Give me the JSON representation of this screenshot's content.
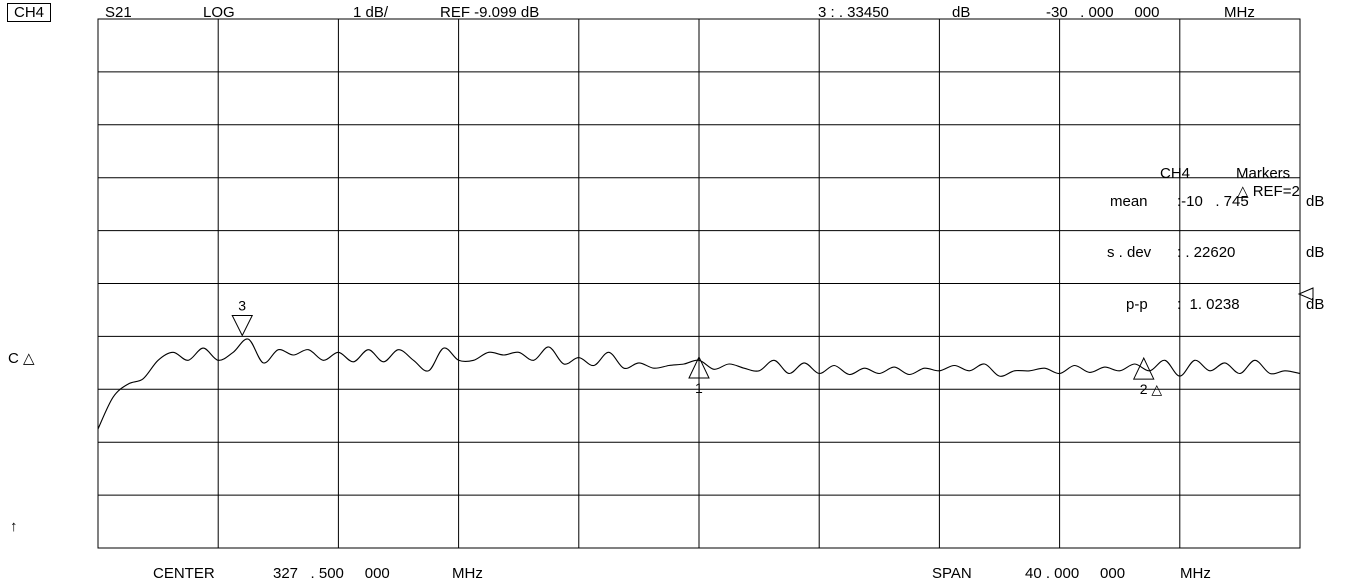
{
  "header": {
    "channel": "CH4",
    "param": "S21",
    "format": "LOG",
    "scale": "1 dB/",
    "ref": "REF -9.099 dB",
    "marker_readout": "3 : . 33450",
    "marker_unit": "dB",
    "marker_freq": "-30   . 000     000",
    "marker_freq_unit": "MHz"
  },
  "left_labels": {
    "ref_pos": "C △",
    "arrow": "↑"
  },
  "stats": {
    "title_ch": "CH4",
    "title_markers": "Markers",
    "delta_ref": "△ REF=2",
    "mean_label": "mean",
    "mean_value": ":-10   . 745",
    "mean_unit": "dB",
    "sdev_label": "s . dev",
    "sdev_value": ": . 22620",
    "sdev_unit": "dB",
    "pp_label": "p-p",
    "pp_value": ":  1. 0238",
    "pp_unit": "dB"
  },
  "footer": {
    "center_label": "CENTER",
    "center_value": "327   . 500     000",
    "center_unit": "MHz",
    "span_label": "SPAN",
    "span_value": "40 . 000     000",
    "span_unit": "MHz"
  },
  "chart_data": {
    "type": "line",
    "x_range_mhz": [
      307.5,
      347.5
    ],
    "x_divisions": 10,
    "y_divisions": 10,
    "grid": true,
    "series": [
      {
        "x": [
          307.5,
          308.0,
          308.5,
          309.0,
          309.5,
          310.0,
          310.5,
          311.0,
          311.5,
          312.0,
          312.5,
          313.0,
          313.5,
          314.0,
          314.5,
          315.0,
          315.5,
          316.0,
          316.5,
          317.0,
          317.5,
          318.0,
          318.5,
          319.0,
          319.5,
          320.0,
          320.5,
          321.0,
          321.5,
          322.0,
          322.5,
          323.0,
          323.5,
          324.0,
          324.5,
          325.0,
          325.5,
          326.0,
          326.5,
          327.0,
          327.5,
          328.0,
          328.5,
          329.0,
          329.5,
          330.0,
          330.5,
          331.0,
          331.5,
          332.0,
          332.5,
          333.0,
          333.5,
          334.0,
          334.5,
          335.0,
          335.5,
          336.0,
          336.5,
          337.0,
          337.5,
          338.0,
          338.5,
          339.0,
          339.5,
          340.0,
          340.5,
          341.0,
          341.5,
          342.0,
          342.5,
          343.0,
          343.5,
          344.0,
          344.5,
          345.0,
          345.5,
          346.0,
          346.5,
          347.0,
          347.5
        ],
        "y": [
          -10.85,
          -10.25,
          -10.0,
          -9.9,
          -9.55,
          -9.4,
          -9.55,
          -9.32,
          -9.55,
          -9.4,
          -9.15,
          -9.6,
          -9.35,
          -9.45,
          -9.35,
          -9.55,
          -9.4,
          -9.58,
          -9.35,
          -9.58,
          -9.35,
          -9.55,
          -9.75,
          -9.32,
          -9.55,
          -9.55,
          -9.4,
          -9.45,
          -9.4,
          -9.55,
          -9.3,
          -9.62,
          -9.5,
          -9.65,
          -9.4,
          -9.7,
          -9.6,
          -9.7,
          -9.65,
          -9.62,
          -9.55,
          -9.72,
          -9.62,
          -9.7,
          -9.75,
          -9.55,
          -9.8,
          -9.6,
          -9.8,
          -9.65,
          -9.82,
          -9.7,
          -9.8,
          -9.68,
          -9.82,
          -9.7,
          -9.75,
          -9.65,
          -9.75,
          -9.62,
          -9.85,
          -9.75,
          -9.75,
          -9.7,
          -9.8,
          -9.65,
          -9.78,
          -9.68,
          -9.75,
          -9.62,
          -9.75,
          -9.55,
          -9.85,
          -9.55,
          -9.75,
          -9.6,
          -9.8,
          -9.55,
          -9.8,
          -9.75,
          -9.8
        ]
      }
    ],
    "markers": [
      {
        "label": "1",
        "x": 327.5,
        "y": -9.64,
        "style": "up"
      },
      {
        "label": "2 △",
        "x": 342.3,
        "y": -9.66,
        "style": "up"
      },
      {
        "label": "3",
        "x": 312.3,
        "y": -9.12,
        "style": "down"
      }
    ]
  }
}
